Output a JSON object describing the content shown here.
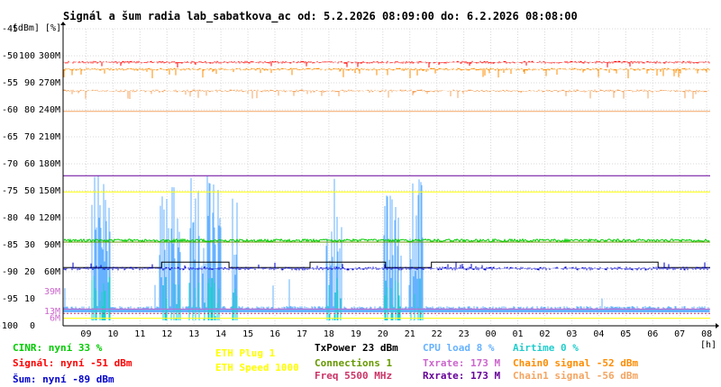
{
  "title": "Signál a šum radia lab_sabatkova_ac od: 5.2.2026 08:09:00 do: 6.2.2026 08:08:00",
  "colors": {
    "signal": "#ff0000",
    "chain0": "#ff8c00",
    "chain1": "#f4a460",
    "noise": "#0000cc",
    "cpu": "#66b2ff",
    "airtime": "#22cccc",
    "txrate": "#cc66cc",
    "rxrate": "#660099",
    "txpower": "#000000",
    "cinr": "#00cc00",
    "connections": "#669900",
    "eth_plug": "#ffff00",
    "eth_speed": "#ffff00",
    "freq": "#cc3366",
    "grid": "#d8d8d8"
  },
  "chart_data": {
    "type": "line",
    "title": "Signál a šum radia lab_sabatkova_ac od: 5.2.2026 08:09:00 do: 6.2.2026 08:08:00",
    "y_axis_units": "[dBm] [%]",
    "x_axis_unit": "[h]",
    "x_ticks": [
      "09",
      "10",
      "11",
      "12",
      "13",
      "14",
      "15",
      "16",
      "17",
      "18",
      "19",
      "20",
      "21",
      "22",
      "23",
      "00",
      "01",
      "02",
      "03",
      "04",
      "05",
      "06",
      "07",
      "08"
    ],
    "y_ticks_dbm": [
      "-45",
      "-50",
      "-55",
      "-60",
      "-65",
      "-70",
      "-75",
      "-80",
      "-85",
      "-90",
      "-95",
      "-100"
    ],
    "y_ticks_pct": [
      "100",
      "90",
      "80",
      "70",
      "60",
      "50",
      "40",
      "30",
      "20",
      "10",
      "0"
    ],
    "y_ticks_rate": [
      "300M",
      "270M",
      "240M",
      "210M",
      "180M",
      "150M",
      "120M",
      "90M",
      "60M",
      "39M",
      "13M",
      "6M"
    ],
    "xlim_hours": [
      8.15,
      32.13
    ],
    "ylim_dbm": [
      -100,
      -45
    ],
    "series": [
      {
        "name": "Signál",
        "key": "signal",
        "baseline_dbm": -51
      },
      {
        "name": "Chain0 signal",
        "key": "chain0",
        "baseline_dbm": -52
      },
      {
        "name": "Chain1 signal",
        "key": "chain1",
        "baseline_dbm": -56
      },
      {
        "name": "Šum",
        "key": "noise",
        "baseline_dbm": -89
      },
      {
        "name": "CINR",
        "key": "cinr",
        "baseline_pct": 33
      },
      {
        "name": "Txrate",
        "key": "txrate",
        "baseline_mbps": 173
      },
      {
        "name": "Rxrate",
        "key": "rxrate",
        "baseline_mbps": 173
      },
      {
        "name": "CPU load",
        "key": "cpu",
        "baseline_pct": 8
      },
      {
        "name": "Airtime",
        "key": "airtime",
        "baseline_pct": 0
      },
      {
        "name": "TxPower",
        "key": "txpower",
        "baseline_dbm": 23
      },
      {
        "name": "ETH Speed",
        "key": "eth_speed",
        "baseline_mbps": 1000
      }
    ],
    "cpu_bursts_hours": [
      [
        9.2,
        9.9
      ],
      [
        11.7,
        12.5
      ],
      [
        12.8,
        14.0
      ],
      [
        14.4,
        14.6
      ],
      [
        17.9,
        18.5
      ],
      [
        20.0,
        20.7
      ],
      [
        21.0,
        21.5
      ]
    ]
  },
  "legend": {
    "cinr": "CINR: nyní 33 %",
    "signal": "Signál: nyní -51 dBm",
    "noise": "Šum: nyní -89 dBm",
    "eth_plug": "ETH Plug 1",
    "eth_speed": "ETH Speed 1000",
    "txpower": "TxPower 23 dBm",
    "connections": "Connections 1",
    "freq": "Freq 5500 MHz",
    "cpu": "CPU load 8 %",
    "txrate": "Txrate: 173 M",
    "rxrate": "Rxrate: 173 M",
    "airtime": "Airtime 0 %",
    "chain0": "Chain0 signal -52 dBm",
    "chain1": "Chain1 signal -56 dBm"
  }
}
